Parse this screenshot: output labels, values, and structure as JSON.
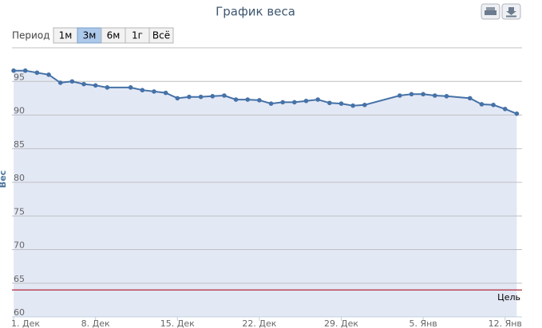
{
  "chart_data": {
    "type": "area",
    "title": "График веса",
    "y_label": "Вес",
    "range_selector": {
      "label": "Период",
      "buttons": [
        "1м",
        "3м",
        "6м",
        "1г",
        "Всё"
      ],
      "selected": 1
    },
    "x": [
      0,
      1,
      2,
      3,
      4,
      5,
      6,
      7,
      8,
      10,
      11,
      12,
      13,
      14,
      15,
      16,
      17,
      18,
      19,
      20,
      21,
      22,
      23,
      24,
      25,
      26,
      27,
      28,
      29,
      30,
      33,
      34,
      35,
      36,
      37,
      39,
      40,
      41,
      42,
      43
    ],
    "values": [
      96.6,
      96.6,
      96.3,
      96.0,
      94.8,
      95.0,
      94.6,
      94.4,
      94.1,
      94.1,
      93.7,
      93.5,
      93.3,
      92.5,
      92.7,
      92.7,
      92.8,
      92.9,
      92.3,
      92.3,
      92.2,
      91.7,
      91.9,
      91.9,
      92.1,
      92.3,
      91.8,
      91.7,
      91.4,
      91.5,
      92.9,
      93.1,
      93.1,
      92.9,
      92.8,
      92.5,
      91.6,
      91.5,
      90.9,
      90.2
    ],
    "color": "#4572a7",
    "fill": "#e3e8f5",
    "xlim": [
      -0.14,
      43.45
    ],
    "xticks": [
      {
        "value": 0,
        "label": "1. Дек"
      },
      {
        "value": 7,
        "label": "8. Дек"
      },
      {
        "value": 14,
        "label": "15. Дек"
      },
      {
        "value": 21,
        "label": "22. Дек"
      },
      {
        "value": 28,
        "label": "29. Дек"
      },
      {
        "value": 35,
        "label": "5. Янв"
      },
      {
        "value": 42,
        "label": "12. Янв"
      }
    ],
    "ylim": [
      60,
      100
    ],
    "yticks": [
      60,
      65,
      70,
      75,
      80,
      85,
      90,
      95
    ],
    "grid": true,
    "goal": {
      "value": 64,
      "label": "Цель",
      "color": "#aa1122"
    }
  }
}
